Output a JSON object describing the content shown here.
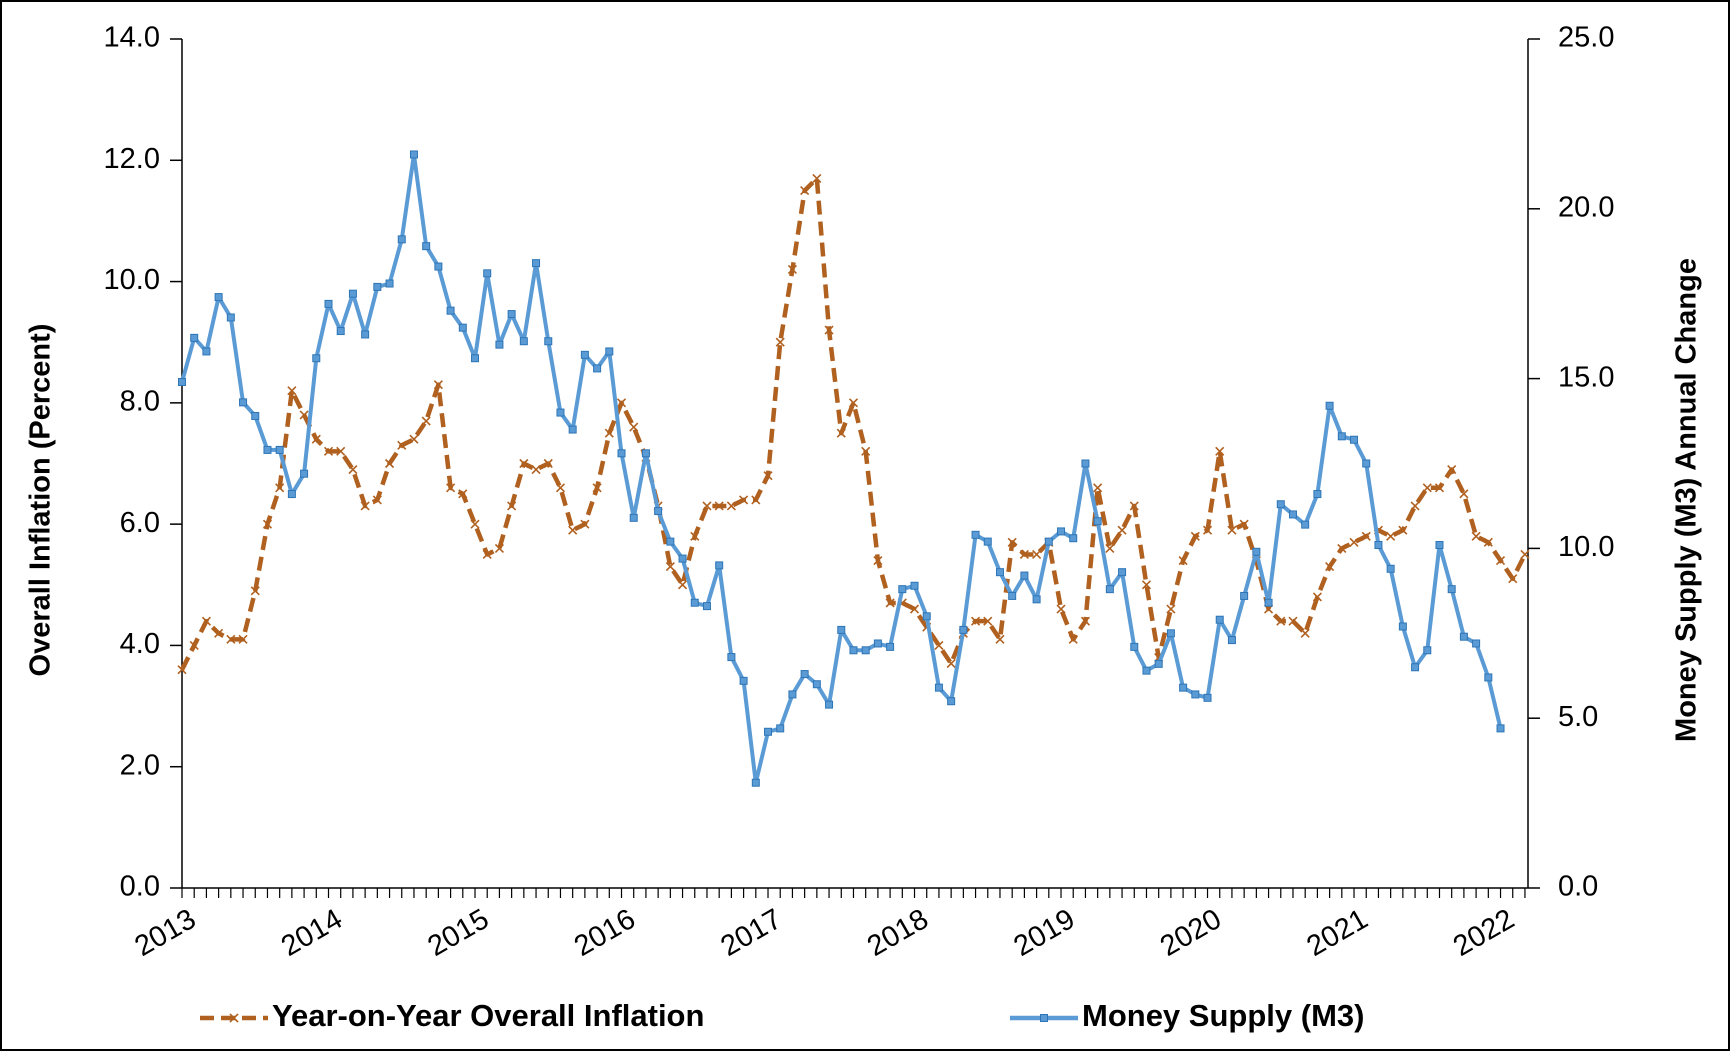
{
  "chart_data": {
    "type": "line",
    "categories": [
      "2013",
      null,
      null,
      null,
      null,
      null,
      null,
      null,
      null,
      null,
      null,
      null,
      "2014",
      null,
      null,
      null,
      null,
      null,
      null,
      null,
      null,
      null,
      null,
      null,
      "2015",
      null,
      null,
      null,
      null,
      null,
      null,
      null,
      null,
      null,
      null,
      null,
      "2016",
      null,
      null,
      null,
      null,
      null,
      null,
      null,
      null,
      null,
      null,
      null,
      "2017",
      null,
      null,
      null,
      null,
      null,
      null,
      null,
      null,
      null,
      null,
      null,
      "2018",
      null,
      null,
      null,
      null,
      null,
      null,
      null,
      null,
      null,
      null,
      null,
      "2019",
      null,
      null,
      null,
      null,
      null,
      null,
      null,
      null,
      null,
      null,
      null,
      "2020",
      null,
      null,
      null,
      null,
      null,
      null,
      null,
      null,
      null,
      null,
      null,
      "2021",
      null,
      null,
      null,
      null,
      null,
      null,
      null,
      null,
      null,
      null,
      null,
      "2022",
      null,
      null
    ],
    "series": [
      {
        "name": "Year-on-Year Overall Inflation",
        "color": "#b0601f",
        "axis": "y",
        "dashed": true,
        "values": [
          3.6,
          4.0,
          4.4,
          4.2,
          4.1,
          4.1,
          4.9,
          6.0,
          6.6,
          8.2,
          7.8,
          7.4,
          7.2,
          7.2,
          6.9,
          6.3,
          6.4,
          7.0,
          7.3,
          7.4,
          7.7,
          8.3,
          6.6,
          6.5,
          6.0,
          5.5,
          5.6,
          6.3,
          7.0,
          6.9,
          7.0,
          6.6,
          5.9,
          6.0,
          6.6,
          7.5,
          8.0,
          7.6,
          7.1,
          6.3,
          5.3,
          5.0,
          5.8,
          6.3,
          6.3,
          6.3,
          6.4,
          6.4,
          6.8,
          9.0,
          10.2,
          11.5,
          11.7,
          9.2,
          7.5,
          8.0,
          7.2,
          5.4,
          4.7,
          4.7,
          4.6,
          4.3,
          4.0,
          3.7,
          4.2,
          4.4,
          4.4,
          4.1,
          5.7,
          5.5,
          5.5,
          5.7,
          4.6,
          4.1,
          4.4,
          6.6,
          5.6,
          5.9,
          6.3,
          5.0,
          3.8,
          4.6,
          5.4,
          5.8,
          5.9,
          7.2,
          5.9,
          6.0,
          5.4,
          4.6,
          4.4,
          4.4,
          4.2,
          4.8,
          5.3,
          5.6,
          5.7,
          5.8,
          5.9,
          5.8,
          5.9,
          6.3,
          6.6,
          6.6,
          6.9,
          6.5,
          5.8,
          5.7,
          5.4,
          5.1,
          5.5
        ]
      },
      {
        "name": "Money Supply (M3)",
        "color": "#5b9bd5",
        "axis": "y2",
        "dashed": false,
        "values": [
          14.9,
          16.2,
          15.8,
          17.4,
          16.8,
          14.3,
          13.9,
          12.9,
          12.9,
          11.6,
          12.2,
          15.6,
          17.2,
          16.4,
          17.5,
          16.3,
          17.7,
          17.8,
          19.1,
          21.6,
          18.9,
          18.3,
          17.0,
          16.5,
          15.6,
          18.1,
          16.0,
          16.9,
          16.1,
          18.4,
          16.1,
          14.0,
          13.5,
          15.7,
          15.3,
          15.8,
          12.8,
          10.9,
          12.8,
          11.1,
          10.2,
          9.7,
          8.4,
          8.3,
          9.5,
          6.8,
          6.1,
          3.1,
          4.6,
          4.7,
          5.7,
          6.3,
          6.0,
          5.4,
          7.6,
          7.0,
          7.0,
          7.2,
          7.1,
          8.8,
          8.9,
          8.0,
          5.9,
          5.5,
          7.6,
          10.4,
          10.2,
          9.3,
          8.6,
          9.2,
          8.5,
          10.2,
          10.5,
          10.3,
          12.5,
          10.8,
          8.8,
          9.3,
          7.1,
          6.4,
          6.6,
          7.5,
          5.9,
          5.7,
          5.6,
          7.9,
          7.3,
          8.6,
          9.9,
          8.4,
          11.3,
          11.0,
          10.7,
          11.6,
          14.2,
          13.3,
          13.2,
          12.5,
          10.1,
          9.4,
          7.7,
          6.5,
          7.0,
          10.1,
          8.8,
          7.4,
          7.2,
          6.2,
          4.7,
          null,
          null
        ]
      }
    ],
    "y_label": "Overall Inflation  (Percent)",
    "y2_label": "Money  Supply  (M3) Annual Change",
    "ylim": [
      0,
      14
    ],
    "yticks": [
      {
        "value": 0,
        "label": "0.0"
      },
      {
        "value": 2,
        "label": "2.0"
      },
      {
        "value": 4,
        "label": "4.0"
      },
      {
        "value": 6,
        "label": "6.0"
      },
      {
        "value": 8,
        "label": "8.0"
      },
      {
        "value": 10,
        "label": "10.0"
      },
      {
        "value": 12,
        "label": "12.0"
      },
      {
        "value": 14,
        "label": "14.0"
      }
    ],
    "y2lim": [
      0,
      25
    ],
    "y2ticks": [
      {
        "value": 0,
        "label": "0.0"
      },
      {
        "value": 5,
        "label": "5.0"
      },
      {
        "value": 10,
        "label": "10.0"
      },
      {
        "value": 15,
        "label": "15.0"
      },
      {
        "value": 20,
        "label": "20.0"
      },
      {
        "value": 25,
        "label": "25.0"
      }
    ],
    "grid": false,
    "legend": "bottom"
  }
}
